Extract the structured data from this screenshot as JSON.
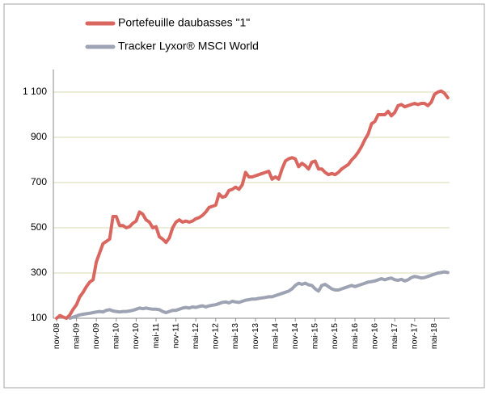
{
  "chart_data": {
    "type": "line",
    "categories": [
      "nov-08",
      null,
      null,
      null,
      null,
      null,
      "mai-09",
      null,
      null,
      null,
      null,
      null,
      "nov-09",
      null,
      null,
      null,
      null,
      null,
      "mai-10",
      null,
      null,
      null,
      null,
      null,
      "nov-10",
      null,
      null,
      null,
      null,
      null,
      "mai-11",
      null,
      null,
      null,
      null,
      null,
      "nov-11",
      null,
      null,
      null,
      null,
      null,
      "mai-12",
      null,
      null,
      null,
      null,
      null,
      "nov-12",
      null,
      null,
      null,
      null,
      null,
      "mai-13",
      null,
      null,
      null,
      null,
      null,
      "nov-13",
      null,
      null,
      null,
      null,
      null,
      "mai-14",
      null,
      null,
      null,
      null,
      null,
      "nov-14",
      null,
      null,
      null,
      null,
      null,
      "mai-15",
      null,
      null,
      null,
      null,
      null,
      "nov-15",
      null,
      null,
      null,
      null,
      null,
      "mai-16",
      null,
      null,
      null,
      null,
      null,
      "nov-16",
      null,
      null,
      null,
      null,
      null,
      "mai-17",
      null,
      null,
      null,
      null,
      null,
      "nov-17",
      null,
      null,
      null,
      null,
      null,
      "mai-18",
      null,
      null,
      null,
      null
    ],
    "series": [
      {
        "name": "Portefeuille daubasses \"1\"",
        "color": "#d9665f",
        "values": [
          100,
          112,
          105,
          100,
          115,
          140,
          160,
          195,
          215,
          240,
          260,
          270,
          350,
          390,
          430,
          440,
          450,
          550,
          550,
          510,
          510,
          500,
          505,
          520,
          530,
          570,
          560,
          535,
          525,
          500,
          505,
          460,
          450,
          435,
          455,
          500,
          525,
          535,
          525,
          530,
          525,
          530,
          540,
          545,
          555,
          570,
          590,
          595,
          600,
          650,
          635,
          640,
          665,
          670,
          680,
          670,
          690,
          745,
          725,
          725,
          730,
          735,
          740,
          745,
          750,
          715,
          725,
          715,
          760,
          795,
          805,
          810,
          805,
          770,
          785,
          775,
          760,
          790,
          795,
          760,
          760,
          745,
          735,
          740,
          735,
          745,
          760,
          770,
          780,
          800,
          815,
          835,
          860,
          890,
          915,
          960,
          970,
          1000,
          1000,
          1000,
          1015,
          995,
          1010,
          1040,
          1045,
          1035,
          1040,
          1045,
          1050,
          1045,
          1050,
          1050,
          1040,
          1055,
          1090,
          1100,
          1105,
          1095,
          1075
        ]
      },
      {
        "name": "Tracker Lyxor® MSCI World",
        "color": "#9ea3b4",
        "values": [
          null,
          null,
          null,
          null,
          100,
          105,
          110,
          115,
          118,
          120,
          122,
          125,
          128,
          130,
          128,
          135,
          138,
          132,
          130,
          128,
          130,
          130,
          132,
          135,
          140,
          145,
          142,
          145,
          142,
          140,
          140,
          138,
          130,
          125,
          130,
          135,
          135,
          140,
          145,
          148,
          145,
          150,
          148,
          152,
          155,
          150,
          155,
          158,
          160,
          165,
          170,
          172,
          168,
          175,
          172,
          170,
          175,
          180,
          182,
          185,
          185,
          188,
          190,
          192,
          195,
          195,
          200,
          205,
          210,
          215,
          220,
          230,
          245,
          255,
          250,
          255,
          248,
          245,
          230,
          220,
          245,
          250,
          240,
          230,
          225,
          225,
          230,
          235,
          240,
          245,
          240,
          245,
          250,
          255,
          260,
          262,
          265,
          270,
          275,
          270,
          275,
          278,
          270,
          268,
          272,
          265,
          270,
          280,
          285,
          282,
          278,
          280,
          285,
          290,
          295,
          300,
          302,
          305,
          302
        ]
      }
    ],
    "ylim": [
      100,
      1200
    ],
    "yticks": [
      100,
      300,
      500,
      700,
      900,
      {
        "value": 1100,
        "label": "1 100"
      }
    ],
    "grid": true
  }
}
